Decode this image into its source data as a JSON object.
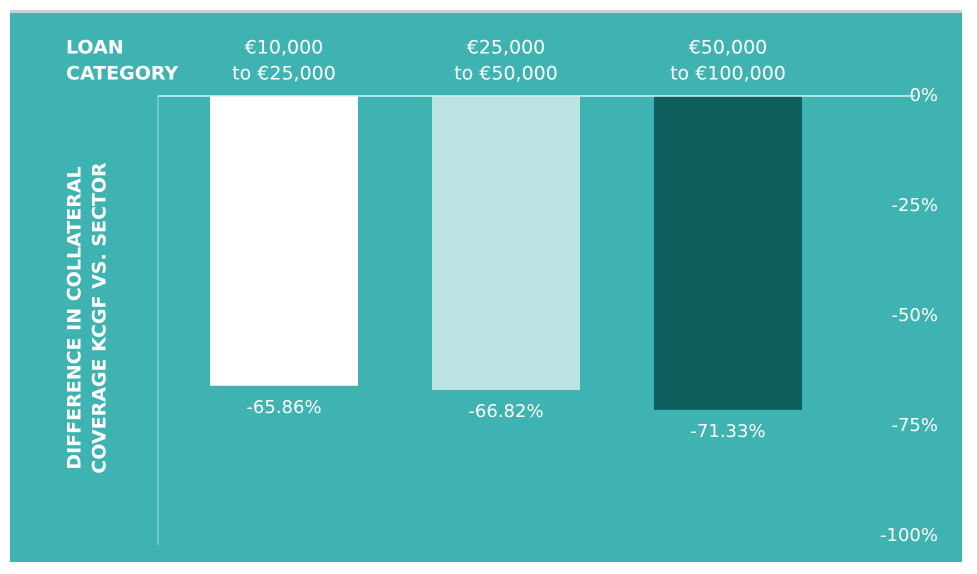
{
  "chart_data": {
    "type": "bar",
    "x_label": [
      "LOAN",
      "CATEGORY"
    ],
    "y_label": [
      "DIFFERENCE IN COLLATERAL",
      "COVERAGE KCGF VS. SECTOR"
    ],
    "categories": [
      [
        "€10,000",
        "to €25,000"
      ],
      [
        "€25,000",
        "to €50,000"
      ],
      [
        "€50,000",
        "to €100,000"
      ]
    ],
    "values": [
      -65.86,
      -66.82,
      -71.33
    ],
    "value_labels": [
      "-65.86%",
      "-66.82%",
      "-71.33%"
    ],
    "colors": [
      "#ffffff",
      "#bae3e1",
      "#0e5e5e"
    ],
    "ylim": [
      -100,
      0
    ],
    "yticks": [
      {
        "value": 0,
        "label": "0%"
      },
      {
        "value": -25,
        "label": "-25%"
      },
      {
        "value": -50,
        "label": "-50%"
      },
      {
        "value": -75,
        "label": "-75%"
      },
      {
        "value": -100,
        "label": "-100%"
      }
    ],
    "grid": false
  }
}
